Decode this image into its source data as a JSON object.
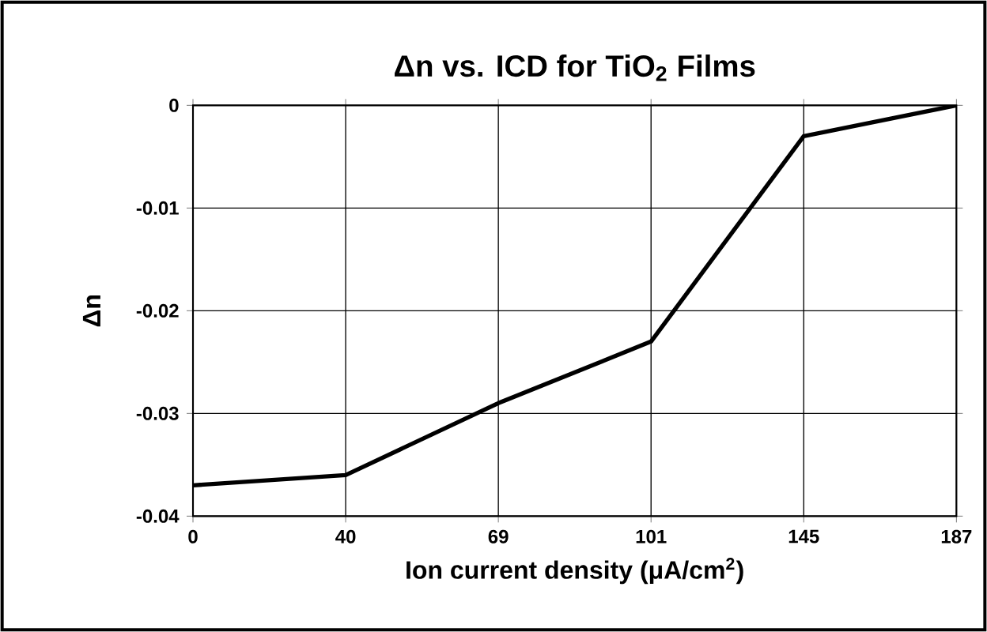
{
  "chart_data": {
    "type": "line",
    "title": "Δn vs. ICD for TiO$_{2}$ Films",
    "xlabel": "Ion current density (μA/cm$^{2}$)",
    "ylabel": "Δn",
    "categories": [
      "0",
      "40",
      "69",
      "101",
      "145",
      "187"
    ],
    "values": [
      -0.037,
      -0.036,
      -0.029,
      -0.023,
      -0.003,
      0
    ],
    "color": "#000000",
    "ylim": [
      -0.04,
      0
    ],
    "yticks": [
      -0.04,
      -0.03,
      -0.02,
      -0.01,
      0
    ],
    "grid": true
  }
}
